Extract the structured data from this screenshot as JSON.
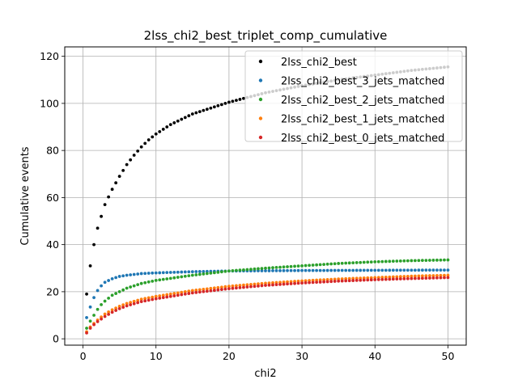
{
  "chart_data": {
    "type": "scatter",
    "title": "2lss_chi2_best_triplet_comp_cumulative",
    "xlabel": "chi2",
    "ylabel": "Cumulative events",
    "xlim": [
      -2.5,
      52.5
    ],
    "ylim": [
      -2.7,
      124
    ],
    "xticks": [
      0,
      10,
      20,
      30,
      40,
      50
    ],
    "yticks": [
      0,
      20,
      40,
      60,
      80,
      100,
      120
    ],
    "grid": true,
    "legend_position": "top-right",
    "x": {
      "start": 0.5,
      "stop": 50,
      "step": 0.5
    },
    "series": [
      {
        "name": "2lss_chi2_best",
        "color": "#000000",
        "anchors": [
          [
            0.5,
            19
          ],
          [
            1,
            31
          ],
          [
            1.5,
            40
          ],
          [
            2,
            47
          ],
          [
            2.5,
            52
          ],
          [
            3,
            57
          ],
          [
            4,
            63.5
          ],
          [
            5,
            69
          ],
          [
            6,
            74
          ],
          [
            7,
            78
          ],
          [
            8,
            81.5
          ],
          [
            9,
            84.5
          ],
          [
            10,
            87
          ],
          [
            12,
            91
          ],
          [
            15,
            95.5
          ],
          [
            20,
            100.5
          ],
          [
            25,
            104.5
          ],
          [
            30,
            107.5
          ],
          [
            35,
            110
          ],
          [
            40,
            112
          ],
          [
            45,
            114
          ],
          [
            50,
            115.5
          ]
        ]
      },
      {
        "name": "2lss_chi2_best_3_jets_matched",
        "color": "#1f77b4",
        "anchors": [
          [
            0.5,
            9
          ],
          [
            1,
            13.5
          ],
          [
            1.5,
            17.5
          ],
          [
            2,
            20.5
          ],
          [
            2.5,
            22.5
          ],
          [
            3,
            24
          ],
          [
            4,
            25.5
          ],
          [
            5,
            26.5
          ],
          [
            6,
            27
          ],
          [
            8,
            27.7
          ],
          [
            10,
            28
          ],
          [
            15,
            28.5
          ],
          [
            20,
            28.8
          ],
          [
            30,
            29
          ],
          [
            40,
            29.1
          ],
          [
            50,
            29.2
          ]
        ]
      },
      {
        "name": "2lss_chi2_best_2_jets_matched",
        "color": "#2ca02c",
        "anchors": [
          [
            0.5,
            4.5
          ],
          [
            1,
            7.5
          ],
          [
            1.5,
            10
          ],
          [
            2,
            12.5
          ],
          [
            2.5,
            14.5
          ],
          [
            3,
            16
          ],
          [
            4,
            18.5
          ],
          [
            5,
            20
          ],
          [
            6,
            21.5
          ],
          [
            8,
            23.5
          ],
          [
            10,
            24.8
          ],
          [
            15,
            27
          ],
          [
            20,
            28.8
          ],
          [
            25,
            30
          ],
          [
            30,
            31
          ],
          [
            35,
            32
          ],
          [
            40,
            32.7
          ],
          [
            45,
            33.2
          ],
          [
            50,
            33.5
          ]
        ]
      },
      {
        "name": "2lss_chi2_best_1_jets_matched",
        "color": "#ff7f0e",
        "anchors": [
          [
            0.5,
            3
          ],
          [
            1,
            5
          ],
          [
            1.5,
            6.5
          ],
          [
            2,
            8
          ],
          [
            3,
            10.5
          ],
          [
            4,
            12.3
          ],
          [
            5,
            13.8
          ],
          [
            6,
            15
          ],
          [
            8,
            16.8
          ],
          [
            10,
            18
          ],
          [
            15,
            20.5
          ],
          [
            20,
            22.3
          ],
          [
            25,
            23.6
          ],
          [
            30,
            24.6
          ],
          [
            35,
            25.4
          ],
          [
            40,
            26
          ],
          [
            45,
            26.6
          ],
          [
            50,
            27
          ]
        ]
      },
      {
        "name": "2lss_chi2_best_0_jets_matched",
        "color": "#d62728",
        "anchors": [
          [
            0.5,
            2.5
          ],
          [
            1,
            4.5
          ],
          [
            1.5,
            6
          ],
          [
            2,
            7.3
          ],
          [
            3,
            9.5
          ],
          [
            4,
            11.3
          ],
          [
            5,
            12.8
          ],
          [
            6,
            14
          ],
          [
            8,
            15.8
          ],
          [
            10,
            17
          ],
          [
            15,
            19.5
          ],
          [
            20,
            21.3
          ],
          [
            25,
            22.7
          ],
          [
            30,
            23.7
          ],
          [
            35,
            24.5
          ],
          [
            40,
            25.1
          ],
          [
            45,
            25.6
          ],
          [
            50,
            26
          ]
        ]
      }
    ]
  }
}
